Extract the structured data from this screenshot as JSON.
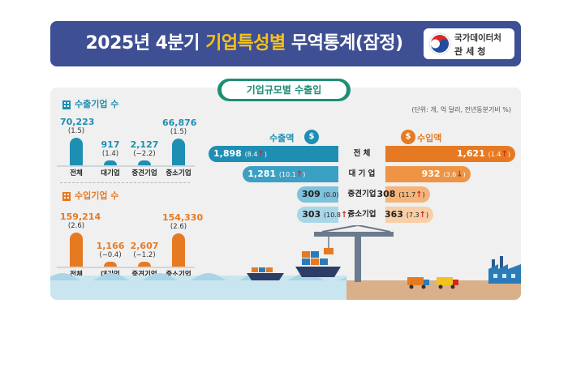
{
  "header": {
    "title_part1": "2025년 4분기",
    "title_part2": "기업특성별",
    "title_part3": "무역통계(잠정)",
    "agency_line1": "국가데이터처",
    "agency_line2": "관세청"
  },
  "section_title": "기업규모별 수출입",
  "unit_note": "(단위: 개, 억 달러, 전년동분기비 %)",
  "exporters": {
    "heading": "수출기업 수",
    "items": [
      {
        "category": "전체",
        "value": "70,223",
        "change": "(1.5)",
        "num": 70223
      },
      {
        "category": "대기업",
        "value": "917",
        "change": "(1.4)",
        "num": 917
      },
      {
        "category": "중견기업",
        "value": "2,127",
        "change": "(−2.2)",
        "num": 2127
      },
      {
        "category": "중소기업",
        "value": "66,876",
        "change": "(1.5)",
        "num": 66876
      }
    ]
  },
  "importers": {
    "heading": "수입기업 수",
    "items": [
      {
        "category": "전체",
        "value": "159,214",
        "change": "(2.6)",
        "num": 159214
      },
      {
        "category": "대기업",
        "value": "1,166",
        "change": "(−0.4)",
        "num": 1166
      },
      {
        "category": "중견기업",
        "value": "2,607",
        "change": "(−1.2)",
        "num": 2607
      },
      {
        "category": "중소기업",
        "value": "154,330",
        "change": "(2.6)",
        "num": 154330
      }
    ]
  },
  "trade": {
    "export_label": "수출액",
    "import_label": "수입액",
    "currency_icon": "dollar-bag-icon",
    "rows": [
      {
        "category": "전  체",
        "export": "1,898",
        "export_change": "(8.4",
        "export_dir": "up",
        "import": "1,621",
        "import_change": "(1.4",
        "import_dir": "up"
      },
      {
        "category": "대 기 업",
        "export": "1,281",
        "export_change": "(10.1",
        "export_dir": "up",
        "import": "932",
        "import_change": "(3.6",
        "import_dir": "down"
      },
      {
        "category": "중견기업",
        "export": "309",
        "export_change": "(0.0)",
        "export_dir": "",
        "import": "308",
        "import_change": "(11.7",
        "import_dir": "up"
      },
      {
        "category": "중소기업",
        "export": "303",
        "export_change": "(10.8",
        "export_dir": "up",
        "import": "363",
        "import_change": "(7.3",
        "import_dir": "up"
      }
    ]
  },
  "colors": {
    "banner": "#3e4f93",
    "export": "#1e8fb3",
    "import": "#e67a22",
    "accent": "#f4c21c",
    "section": "#1f8e76"
  }
}
